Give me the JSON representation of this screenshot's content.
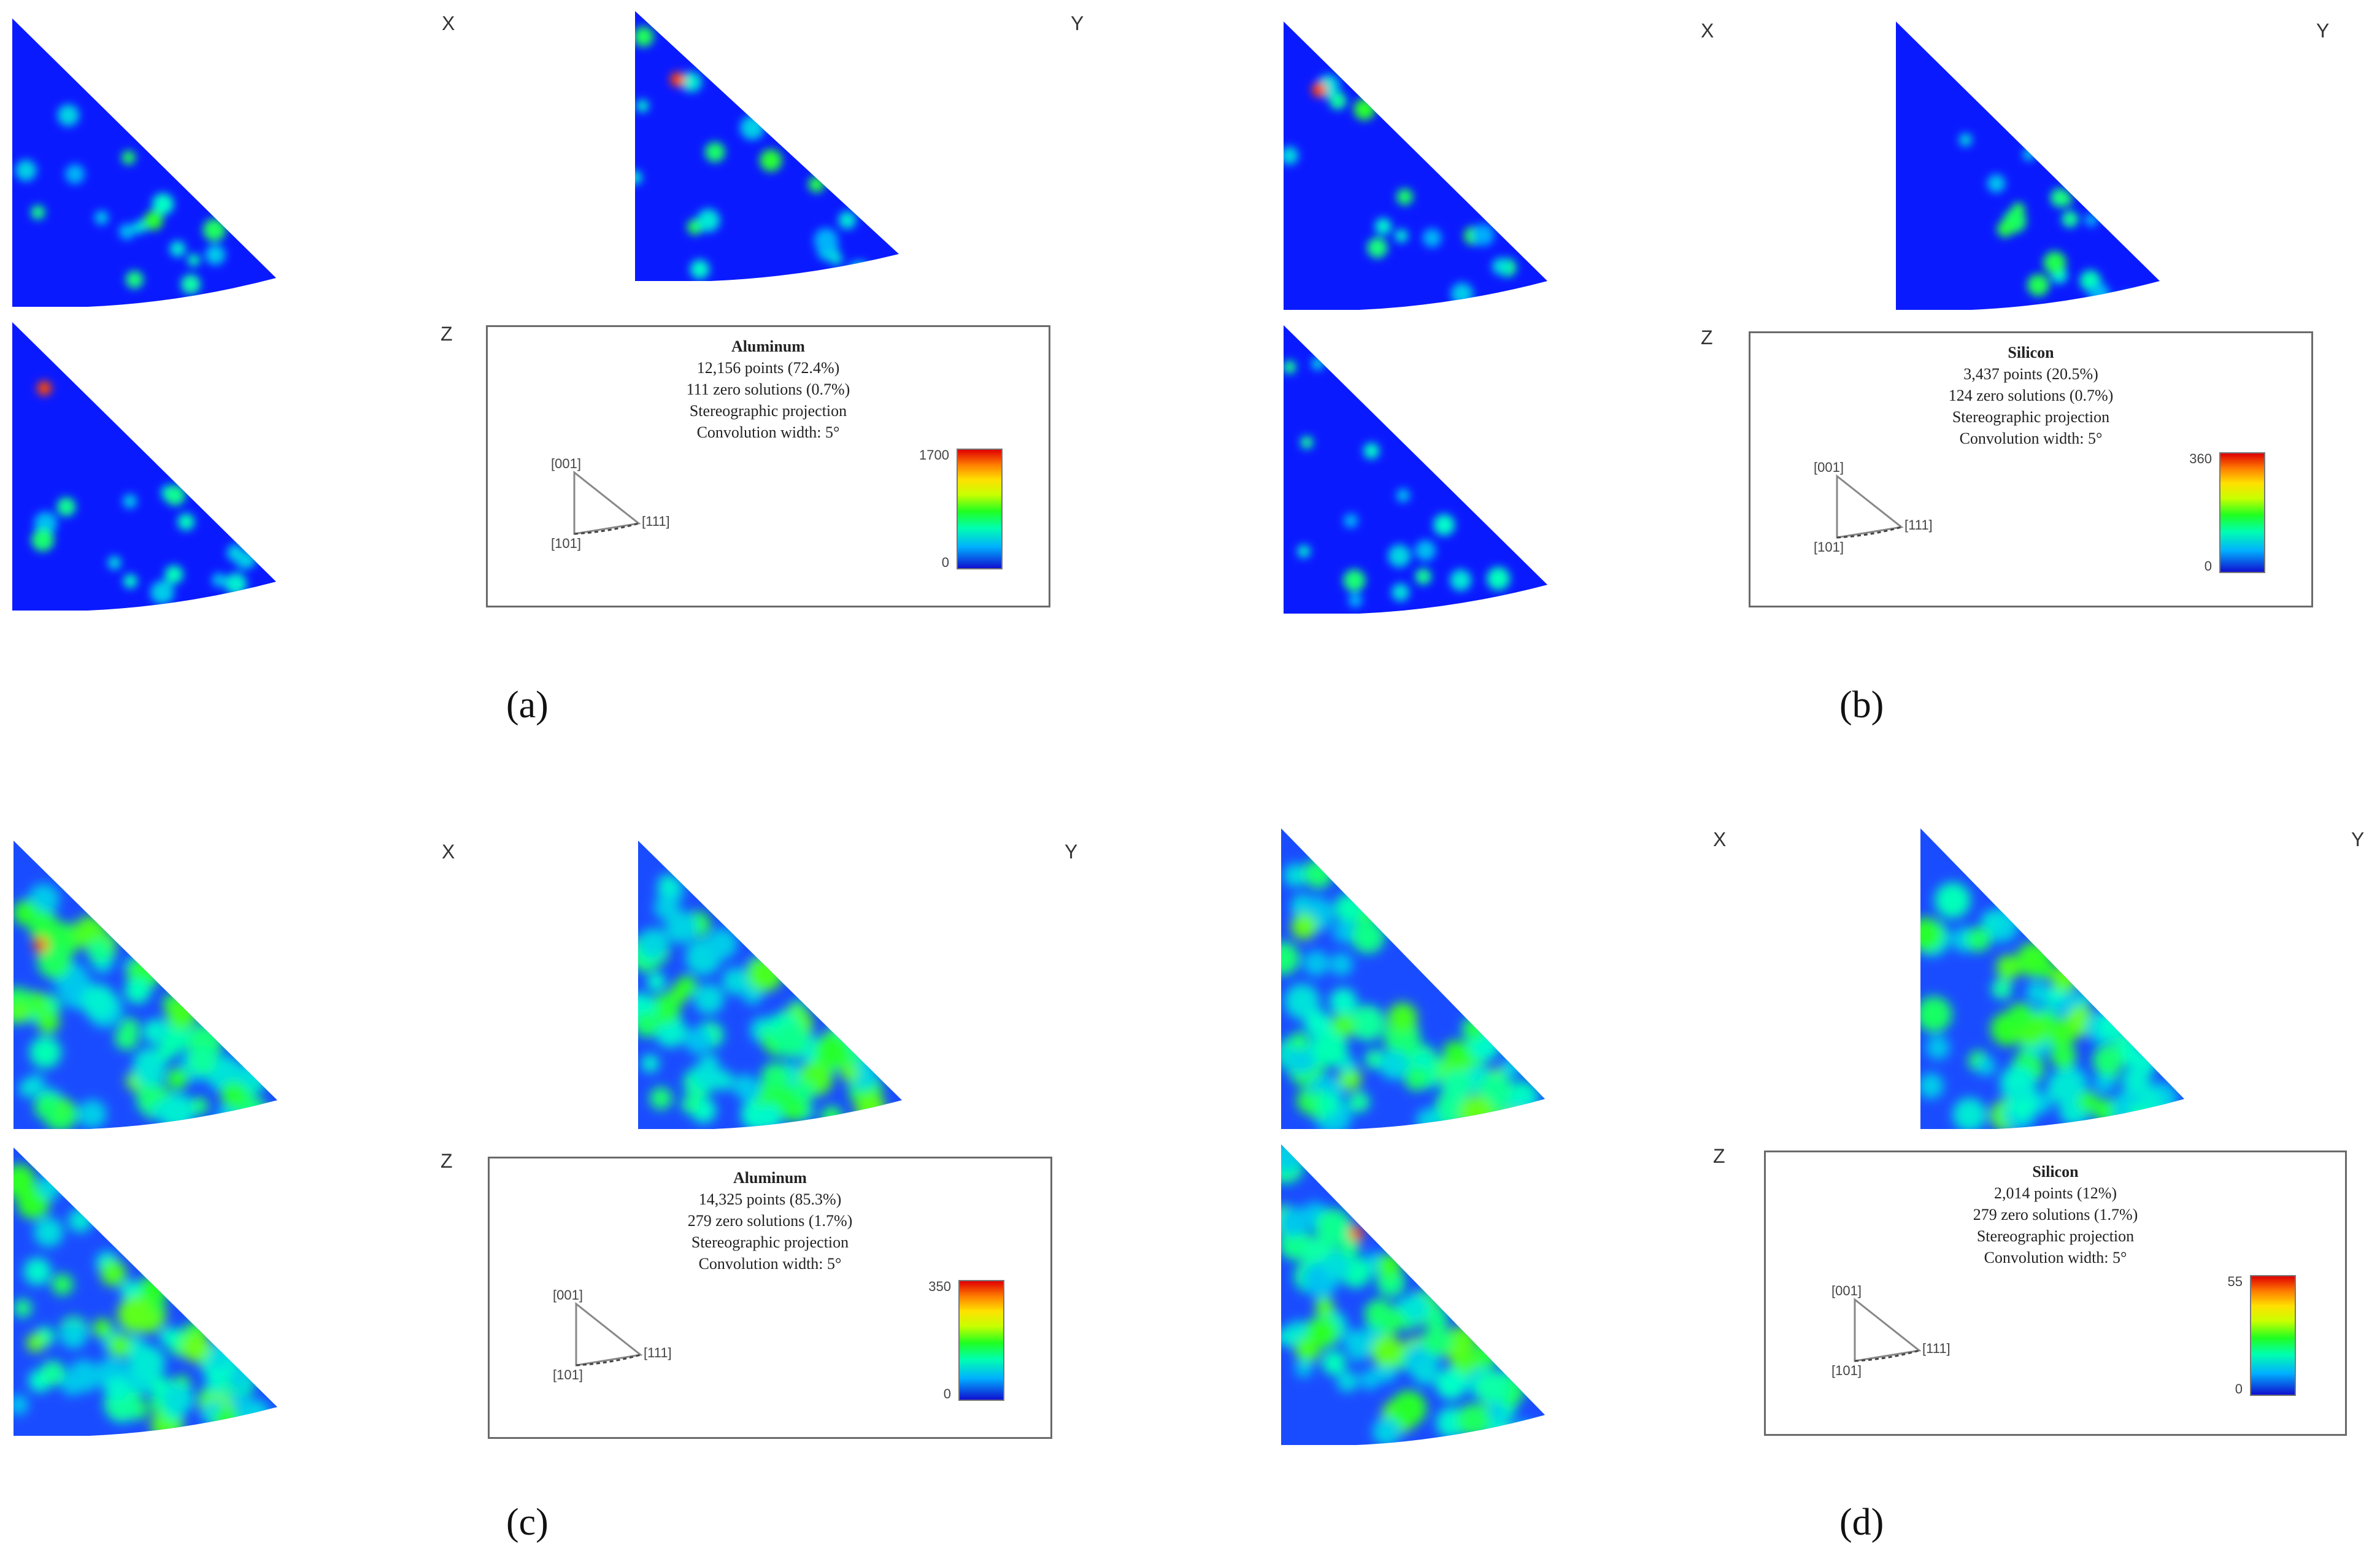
{
  "axis_labels": {
    "x": "X",
    "y": "Y",
    "z": "Z"
  },
  "key": {
    "corner_001": "[001]",
    "corner_101": "[101]",
    "corner_111": "[111]"
  },
  "colors": {
    "low": "#0a1aff",
    "mid": "#00ff80",
    "high": "#ff0000",
    "frame": "#6a6a6a"
  },
  "chart_data": [
    {
      "type": "heatmap",
      "caption": "(a)",
      "phase": "Aluminum",
      "points": "12,156 points (72.4%)",
      "zero_solutions": "111 zero solutions (0.7%)",
      "projection": "Stereographic projection",
      "convolution": "Convolution width: 5°",
      "scale_max": "1700",
      "scale_min": "0",
      "maps": [
        "X",
        "Y",
        "Z"
      ]
    },
    {
      "type": "heatmap",
      "caption": "(b)",
      "phase": "Silicon",
      "points": "3,437 points (20.5%)",
      "zero_solutions": "124 zero solutions (0.7%)",
      "projection": "Stereographic projection",
      "convolution": "Convolution width: 5°",
      "scale_max": "360",
      "scale_min": "0",
      "maps": [
        "X",
        "Y",
        "Z"
      ]
    },
    {
      "type": "heatmap",
      "caption": "(c)",
      "phase": "Aluminum",
      "points": "14,325 points (85.3%)",
      "zero_solutions": "279 zero solutions (1.7%)",
      "projection": "Stereographic projection",
      "convolution": "Convolution width: 5°",
      "scale_max": "350",
      "scale_min": "0",
      "maps": [
        "X",
        "Y",
        "Z"
      ]
    },
    {
      "type": "heatmap",
      "caption": "(d)",
      "phase": "Silicon",
      "points": "2,014 points (12%)",
      "zero_solutions": "279 zero solutions (1.7%)",
      "projection": "Stereographic projection",
      "convolution": "Convolution width: 5°",
      "scale_max": "55",
      "scale_min": "0",
      "maps": [
        "X",
        "Y",
        "Z"
      ]
    }
  ]
}
